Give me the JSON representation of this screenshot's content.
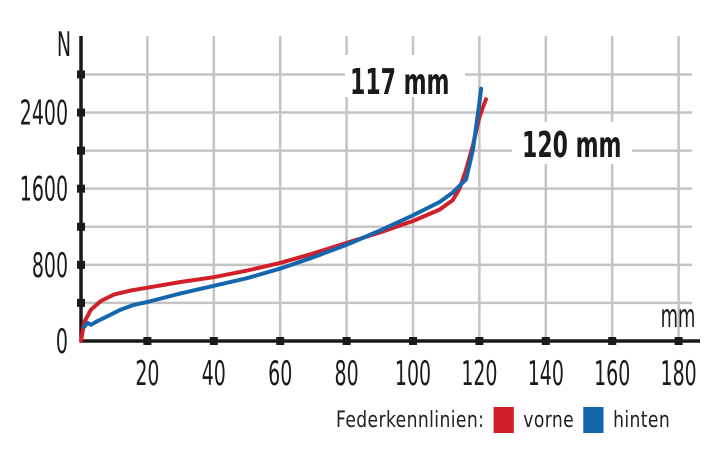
{
  "chart_data": {
    "type": "line",
    "title": "",
    "xlabel": "mm",
    "ylabel": "N",
    "xlim": [
      0,
      180
    ],
    "ylim": [
      0,
      2800
    ],
    "x_ticks": [
      20,
      40,
      60,
      80,
      100,
      120,
      140,
      160,
      180
    ],
    "y_ticks": [
      0,
      800,
      1600,
      2400
    ],
    "grid": true,
    "legend_title": "Federkennlinien:",
    "series": [
      {
        "name": "vorne",
        "color": "#e02020",
        "x": [
          0,
          1,
          3,
          6,
          10,
          15,
          20,
          30,
          40,
          50,
          60,
          70,
          80,
          90,
          100,
          108,
          112,
          114,
          116,
          118,
          119,
          120,
          121,
          122
        ],
        "y": [
          0,
          200,
          330,
          420,
          490,
          530,
          560,
          620,
          670,
          740,
          820,
          920,
          1030,
          1140,
          1260,
          1380,
          1480,
          1600,
          1800,
          2050,
          2200,
          2350,
          2450,
          2540
        ]
      },
      {
        "name": "hinten",
        "color": "#1f6fb5",
        "x": [
          1,
          2,
          3,
          5,
          8,
          12,
          16,
          20,
          30,
          40,
          50,
          60,
          70,
          80,
          90,
          100,
          108,
          112,
          116,
          118,
          119,
          120,
          120.5
        ],
        "y": [
          150,
          190,
          170,
          210,
          260,
          330,
          380,
          410,
          500,
          580,
          660,
          760,
          880,
          1010,
          1160,
          1320,
          1460,
          1560,
          1700,
          2000,
          2250,
          2500,
          2650
        ]
      }
    ],
    "annotations": [
      {
        "text": "117 mm",
        "x": 117,
        "y": 2700
      },
      {
        "text": "120 mm",
        "x": 120,
        "y": 2100
      }
    ]
  },
  "labels": {
    "y_unit": "N",
    "x_unit": "mm",
    "ann_117": "117 mm",
    "ann_120": "120 mm",
    "legend_title": "Federkennlinien:",
    "legend_front": "vorne",
    "legend_rear": "hinten"
  },
  "colors": {
    "front": "#d2202a",
    "rear": "#1467ad",
    "grid": "#c4c4c4",
    "axis": "#1a1a1a"
  }
}
